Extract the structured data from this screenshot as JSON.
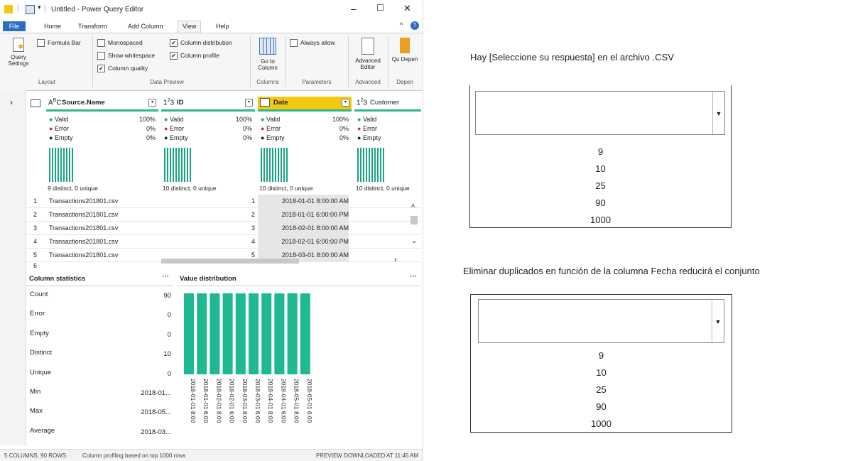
{
  "window": {
    "title": "Untitled - Power Query Editor",
    "min_glyph": "–",
    "max_glyph": "☐",
    "close_glyph": "✕"
  },
  "menu": {
    "file": "File",
    "home": "Home",
    "transform": "Transform",
    "add_column": "Add Column",
    "view": "View",
    "help": "Help"
  },
  "ribbon": {
    "query_settings": "Query Settings",
    "formula_bar": "Formula Bar",
    "monospaced": "Monospaced",
    "show_whitespace": "Show whitespace",
    "column_quality": "Column quality",
    "column_distribution": "Column distribution",
    "column_profile": "Column profile",
    "go_to_column": "Go to Column",
    "always_allow": "Always allow",
    "advanced_editor": "Advanced Editor",
    "query_dependencies": "Qu Depen",
    "groups": {
      "layout": "Layout",
      "data_preview": "Data Preview",
      "columns": "Columns",
      "parameters": "Parameters",
      "advanced": "Advanced",
      "dependencies": "Depen"
    },
    "checked": {
      "formula_bar": false,
      "monospaced": false,
      "show_whitespace": false,
      "column_quality": true,
      "column_distribution": true,
      "column_profile": true,
      "always_allow": false
    }
  },
  "grid": {
    "columns": [
      {
        "type": "ABC",
        "name": "Source.Name",
        "valid": "100%",
        "error": "0%",
        "empty": "0%",
        "distinct": "9 distinct, 0 unique"
      },
      {
        "type": "123",
        "name": "ID",
        "valid": "100%",
        "error": "0%",
        "empty": "0%",
        "distinct": "10 distinct, 0 unique"
      },
      {
        "type": "date",
        "name": "Date",
        "valid": "100%",
        "error": "0%",
        "empty": "0%",
        "distinct": "10 distinct, 0 unique"
      },
      {
        "type": "123",
        "name": "Customer",
        "valid": "",
        "error": "",
        "empty": "",
        "distinct": "10 distinct, 0 unique"
      }
    ],
    "quality_labels": {
      "valid": "Valid",
      "error": "Error",
      "empty": "Empty"
    },
    "rows": [
      {
        "n": "1",
        "source": "Transactions201801.csv",
        "id": "1",
        "date": "2018-01-01 8:00:00 AM"
      },
      {
        "n": "2",
        "source": "Transactions201801.csv",
        "id": "2",
        "date": "2018-01-01 6:00:00 PM"
      },
      {
        "n": "3",
        "source": "Transactions201801.csv",
        "id": "3",
        "date": "2018-02-01 8:00:00 AM"
      },
      {
        "n": "4",
        "source": "Transactions201801.csv",
        "id": "4",
        "date": "2018-02-01 6:00:00 PM"
      },
      {
        "n": "5",
        "source": "Transactions201801.csv",
        "id": "5",
        "date": "2018-03-01 8:00:00 AM"
      },
      {
        "n": "6",
        "source": "",
        "id": "",
        "date": ""
      }
    ]
  },
  "column_statistics": {
    "title": "Column statistics",
    "items": [
      {
        "k": "Count",
        "v": "90"
      },
      {
        "k": "Error",
        "v": "0"
      },
      {
        "k": "Empty",
        "v": "0"
      },
      {
        "k": "Distinct",
        "v": "10"
      },
      {
        "k": "Unique",
        "v": "0"
      },
      {
        "k": "Min",
        "v": "2018-01..."
      },
      {
        "k": "Max",
        "v": "2018-05..."
      },
      {
        "k": "Average",
        "v": "2018-03..."
      }
    ]
  },
  "value_distribution": {
    "title": "Value distribution",
    "labels": [
      "2018-01-01 8:00",
      "2018-01-01 6:00",
      "2018-02-01 8:00",
      "2018-02-01 6:00",
      "2018-03-01 8:00",
      "2018-03-01 6:00",
      "2018-04-01 8:00",
      "2018-04-01 6:00",
      "2018-05-01 8:00",
      "2018-05-01 6:00"
    ],
    "values": [
      9,
      9,
      9,
      9,
      9,
      9,
      9,
      9,
      9,
      9
    ],
    "color": "#1fb892"
  },
  "status": {
    "left": "5 COLUMNS, 90 ROWS",
    "middle": "Column profiling based on top 1000 rows",
    "right": "PREVIEW DOWNLOADED AT 11:45 AM"
  },
  "quiz": {
    "q1": "Hay [Seleccione su respuesta] en el archivo .CSV",
    "q2": "Eliminar duplicados en función de la columna Fecha reducirá el conjunto",
    "options": [
      "9",
      "10",
      "25",
      "90",
      "1000"
    ],
    "q1_selected": "",
    "q2_selected": ""
  }
}
